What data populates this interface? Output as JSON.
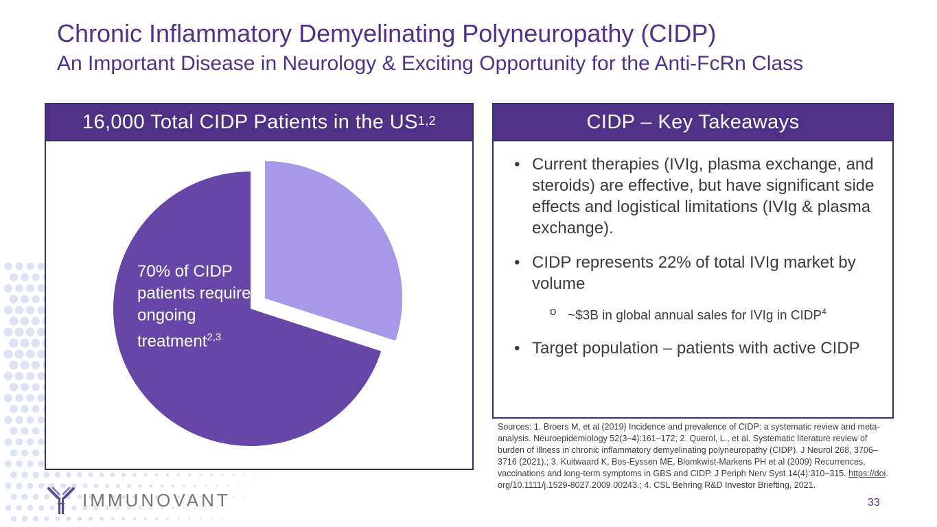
{
  "header": {
    "title": "Chronic Inflammatory Demyelinating Polyneuropathy (CIDP)",
    "subtitle": "An Important Disease in Neurology & Exciting Opportunity for the Anti-FcRn Class"
  },
  "left_panel": {
    "heading": "16,000 Total CIDP Patients in the US",
    "heading_sup": "1,2",
    "pie_label": "70% of CIDP patients require ongoing treatment",
    "pie_label_sup": "2,3"
  },
  "right_panel": {
    "heading": "CIDP – Key Takeaways",
    "bullets": [
      "Current therapies (IVIg, plasma exchange, and steroids) are effective, but have significant side effects and logistical limitations (IVIg & plasma exchange).",
      "CIDP represents 22% of total IVIg market by volume",
      "Target population – patients with active CIDP"
    ],
    "sub_bullet": "~$3B in global annual sales for IVIg in CIDP",
    "sub_bullet_sup": "4"
  },
  "sources": {
    "text_a": "Sources: 1. Broers M, et al (2019) Incidence and prevalence of CIDP: a systematic review and meta-analysis. Neuroepidemiology 52(3–4):161–172; 2. Querol, L., et al. Systematic literature review of burden of illness in chronic inflammatory demyelinating polyneuropathy (CIDP). J Neurol 268, 3706–3716 (2021).; 3. Kuitwaard K, Bos-Eyssen ME, Blomkwist-Markens PH et al (2009) Recurrences, vaccinations and long-term symptoms in GBS and CIDP. J Periph Nerv Syst 14(4):310–315. ",
    "link_text": "https://doi",
    "text_b": ". org/10.1111/j.1529-8027.2009.00243.; 4. CSL Behring R&D Investor Briefting, 2021."
  },
  "footer": {
    "logo_text": "IMMUNOVANT",
    "logo_icon": "antibody-icon",
    "page_number": "33"
  },
  "colors": {
    "brand_purple": "#4f3188",
    "pie_dark": "#6647a8",
    "pie_light": "#a898e8",
    "dots": "#dde3f3"
  },
  "chart_data": {
    "type": "pie",
    "slices": [
      {
        "value": 70,
        "color": "#6647a8"
      },
      {
        "value": 30,
        "color": "#a898e8",
        "exploded": true
      }
    ],
    "annotation": "70% of CIDP patients require ongoing treatment"
  }
}
